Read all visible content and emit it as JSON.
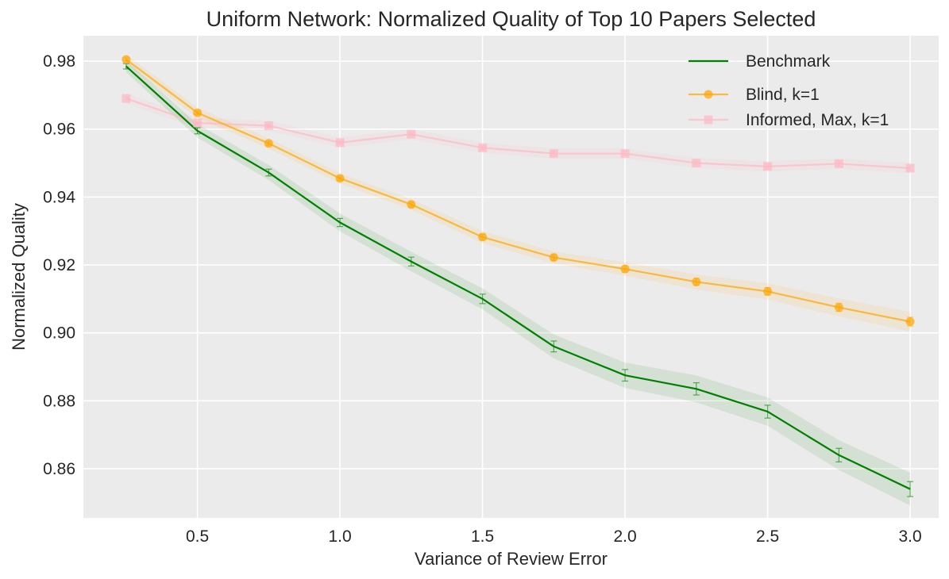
{
  "chart_data": {
    "type": "line",
    "title": "Uniform Network: Normalized Quality of Top 10 Papers Selected",
    "xlabel": "Variance of Review Error",
    "ylabel": "Normalized Quality",
    "xlim": [
      0.1,
      3.1
    ],
    "ylim": [
      0.8455,
      0.9875
    ],
    "xticks": [
      0.5,
      1.0,
      1.5,
      2.0,
      2.5,
      3.0
    ],
    "xtick_labels": [
      "0.5",
      "1.0",
      "1.5",
      "2.0",
      "2.5",
      "3.0"
    ],
    "yticks": [
      0.86,
      0.88,
      0.9,
      0.92,
      0.94,
      0.96,
      0.98
    ],
    "ytick_labels": [
      "0.86",
      "0.88",
      "0.90",
      "0.92",
      "0.94",
      "0.96",
      "0.98"
    ],
    "grid": true,
    "legend_position": "top-right",
    "x": [
      0.25,
      0.5,
      0.75,
      1.0,
      1.25,
      1.5,
      1.75,
      2.0,
      2.25,
      2.5,
      2.75,
      3.0
    ],
    "series": [
      {
        "name": "Benchmark",
        "color": "#008000",
        "marker": "none",
        "values": [
          0.9785,
          0.9595,
          0.9472,
          0.9325,
          0.921,
          0.91,
          0.896,
          0.8875,
          0.8835,
          0.8768,
          0.864,
          0.854
        ],
        "errors": [
          0.0008,
          0.0009,
          0.001,
          0.0012,
          0.0013,
          0.0014,
          0.0016,
          0.0017,
          0.0018,
          0.0019,
          0.002,
          0.0022
        ]
      },
      {
        "name": "Blind, k=1",
        "color": "#ffa500",
        "marker": "circle",
        "values": [
          0.9805,
          0.9648,
          0.9558,
          0.9455,
          0.9378,
          0.9282,
          0.9222,
          0.9188,
          0.915,
          0.9122,
          0.9075,
          0.9033
        ],
        "errors": [
          0.0005,
          0.0005,
          0.0006,
          0.0006,
          0.0007,
          0.0008,
          0.0008,
          0.0009,
          0.001,
          0.0011,
          0.0012,
          0.0013
        ]
      },
      {
        "name": "Informed, Max, k=1",
        "color": "#ffb6c1",
        "marker": "square",
        "values": [
          0.969,
          0.9618,
          0.961,
          0.956,
          0.9585,
          0.9545,
          0.9528,
          0.9528,
          0.95,
          0.949,
          0.9498,
          0.9485
        ],
        "errors": [
          0.0004,
          0.0004,
          0.0005,
          0.0005,
          0.0005,
          0.0006,
          0.0006,
          0.0006,
          0.0006,
          0.0007,
          0.0007,
          0.0007
        ]
      }
    ]
  }
}
